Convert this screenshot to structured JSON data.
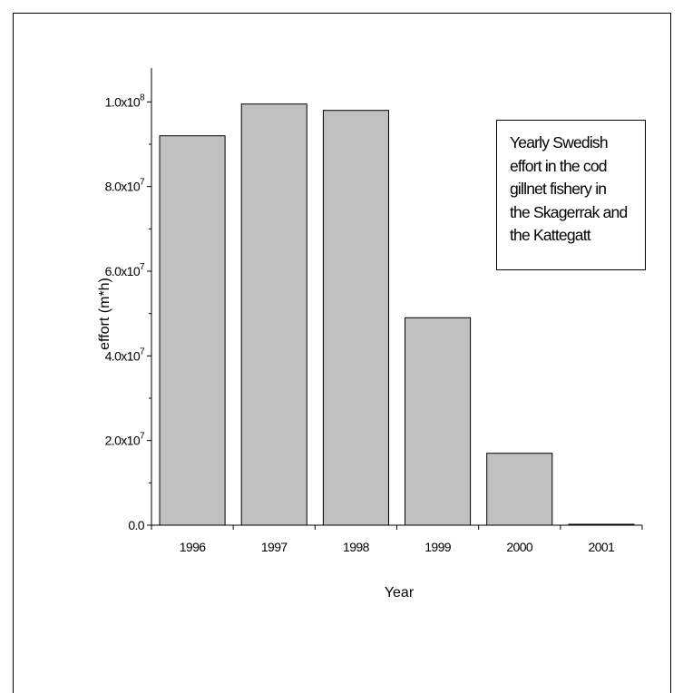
{
  "chart_data": {
    "type": "bar",
    "categories": [
      "1996",
      "1997",
      "1998",
      "1999",
      "2000",
      "2001"
    ],
    "values": [
      92000000,
      99500000,
      98000000,
      49000000,
      17000000,
      0
    ],
    "ylim": [
      0,
      108000000
    ],
    "yticks": [
      {
        "value": 0,
        "label": "0.0"
      },
      {
        "value": 20000000,
        "label": "2.0x10",
        "exp": "7"
      },
      {
        "value": 40000000,
        "label": "4.0x10",
        "exp": "7"
      },
      {
        "value": 60000000,
        "label": "6.0x10",
        "exp": "7"
      },
      {
        "value": 80000000,
        "label": "8.0x10",
        "exp": "7"
      },
      {
        "value": 100000000,
        "label": "1.0x10",
        "exp": "8"
      }
    ],
    "xlabel": "Year",
    "ylabel": "effort (m*h)",
    "annotation": "Yearly Swedish\neffort in the cod\ngillnet fishery in\nthe Skagerrak and\nthe Kattegatt",
    "bar_color": "#c0c0c0",
    "grid": false
  }
}
